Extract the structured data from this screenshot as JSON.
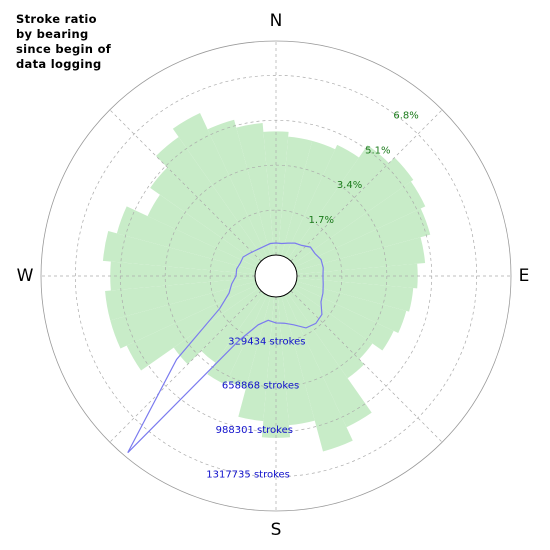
{
  "chart_data": {
    "type": "polar_bar",
    "title": "Stroke ratio\nby bearing\nsince begin of\ndata logging",
    "direction_labels": [
      "N",
      "E",
      "S",
      "W"
    ],
    "x": [
      0,
      10,
      20,
      30,
      40,
      50,
      60,
      70,
      80,
      90,
      100,
      110,
      120,
      130,
      140,
      150,
      160,
      170,
      180,
      190,
      200,
      210,
      220,
      230,
      240,
      250,
      260,
      270,
      280,
      290,
      300,
      310,
      320,
      330,
      340,
      350
    ],
    "rlim": [
      0,
      8.1
    ],
    "rticks": [
      {
        "value": 1.7,
        "label": "1.7%"
      },
      {
        "value": 3.4,
        "label": "3.4%"
      },
      {
        "value": 5.1,
        "label": "5.1%"
      },
      {
        "value": 6.8,
        "label": "6.8%"
      }
    ],
    "r2lim": [
      0,
      1569664
    ],
    "r2ticks": [
      {
        "value": 329434,
        "label": "329434 strokes"
      },
      {
        "value": 658868,
        "label": "658868 strokes"
      },
      {
        "value": 988301,
        "label": "988301 strokes"
      },
      {
        "value": 1317735,
        "label": "1317735 strokes"
      }
    ],
    "grid": true,
    "series": [
      {
        "color": "#c8ecc8",
        "values": [
          4.68,
          4.5,
          4.5,
          4.68,
          5.25,
          5.55,
          5.44,
          5.25,
          4.87,
          4.57,
          4.42,
          4.31,
          4.12,
          3.66,
          3.93,
          5.52,
          6.08,
          4.87,
          5.33,
          4.72,
          3.59,
          3.74,
          3.21,
          3.93,
          5.44,
          5.7,
          5.7,
          5.48,
          5.78,
          5.44,
          4.57,
          5.02,
          5.63,
          6.01,
          5.33,
          5.02
        ]
      },
      {
        "color": "#7b7bef",
        "axis": "r2",
        "values": [
          87850,
          87850,
          102490,
          124450,
          139100,
          175700,
          175700,
          197660,
          197660,
          190340,
          197660,
          212300,
          226940,
          285510,
          300150,
          285510,
          226940,
          197660,
          190340,
          175700,
          226940,
          395320,
          1537370,
          797970,
          322120,
          212300,
          175700,
          139100,
          139100,
          124450,
          124450,
          102490,
          87850,
          80530,
          80530,
          87850
        ]
      }
    ]
  }
}
